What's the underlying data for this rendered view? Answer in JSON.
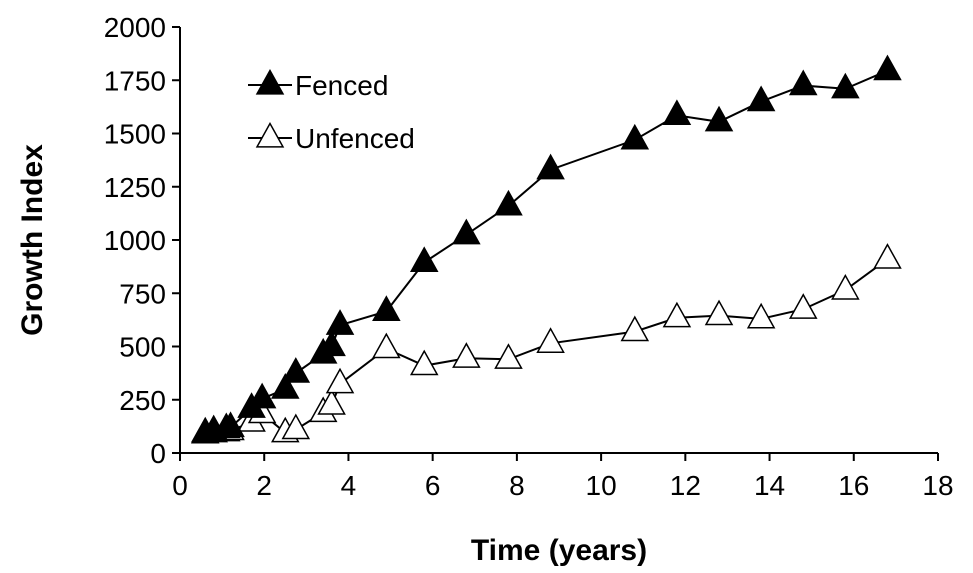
{
  "chart_data": {
    "type": "line",
    "title": "",
    "xlabel": "Time (years)",
    "ylabel": "Growth Index",
    "xlim": [
      0,
      18
    ],
    "ylim": [
      0,
      2000
    ],
    "x_ticks": [
      0,
      2,
      4,
      6,
      8,
      10,
      12,
      14,
      16,
      18
    ],
    "y_ticks": [
      0,
      250,
      500,
      750,
      1000,
      1250,
      1500,
      1750,
      2000
    ],
    "grid": false,
    "legend_position": "top-left",
    "series": [
      {
        "name": "Fenced",
        "marker": "filled-triangle",
        "color": "#000000",
        "points": [
          [
            0.6,
            95
          ],
          [
            0.8,
            105
          ],
          [
            1.1,
            115
          ],
          [
            1.2,
            120
          ],
          [
            1.7,
            210
          ],
          [
            1.95,
            255
          ],
          [
            2.5,
            300
          ],
          [
            2.75,
            375
          ],
          [
            3.4,
            465
          ],
          [
            3.6,
            500
          ],
          [
            3.8,
            600
          ],
          [
            4.9,
            665
          ],
          [
            5.8,
            895
          ],
          [
            6.8,
            1025
          ],
          [
            7.8,
            1160
          ],
          [
            8.8,
            1330
          ],
          [
            10.8,
            1470
          ],
          [
            11.8,
            1585
          ],
          [
            12.8,
            1555
          ],
          [
            13.8,
            1650
          ],
          [
            14.8,
            1725
          ],
          [
            15.8,
            1710
          ],
          [
            16.8,
            1795
          ]
        ]
      },
      {
        "name": "Unfenced",
        "marker": "open-triangle",
        "color": "#000000",
        "points": [
          [
            0.6,
            90
          ],
          [
            0.8,
            95
          ],
          [
            1.1,
            100
          ],
          [
            1.2,
            105
          ],
          [
            1.7,
            145
          ],
          [
            1.95,
            185
          ],
          [
            2.5,
            95
          ],
          [
            2.75,
            110
          ],
          [
            3.4,
            190
          ],
          [
            3.6,
            225
          ],
          [
            3.8,
            325
          ],
          [
            4.9,
            490
          ],
          [
            5.8,
            410
          ],
          [
            6.8,
            445
          ],
          [
            7.8,
            440
          ],
          [
            8.8,
            515
          ],
          [
            10.8,
            570
          ],
          [
            11.8,
            635
          ],
          [
            12.8,
            645
          ],
          [
            13.8,
            630
          ],
          [
            14.8,
            675
          ],
          [
            15.8,
            765
          ],
          [
            16.8,
            910
          ]
        ]
      }
    ]
  }
}
